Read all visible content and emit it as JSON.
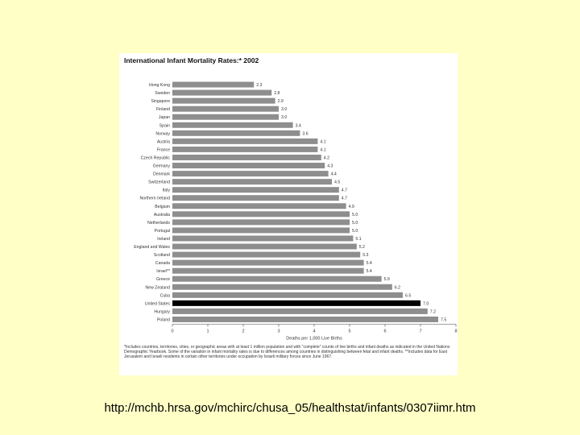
{
  "source_url": "http://mchb.hrsa.gov/mchirc/chusa_05/healthstat/infants/0307iimr.htm",
  "colors": {
    "bar": "#8e8e8e",
    "highlight": "#000000",
    "background": "#ffffc6"
  },
  "chart_data": {
    "type": "bar",
    "orientation": "horizontal",
    "title": "International Infant Mortality Rates:* 2002",
    "xlabel": "Deaths per 1,000 Live Births",
    "xlim": [
      0,
      8
    ],
    "xticks": [
      0,
      1,
      2,
      3,
      4,
      5,
      6,
      7,
      8
    ],
    "highlight": "United States",
    "categories": [
      "Hong Kong",
      "Sweden",
      "Singapore",
      "Finland",
      "Japan",
      "Spain",
      "Norway",
      "Austria",
      "France",
      "Czech Republic",
      "Germany",
      "Denmark",
      "Switzerland",
      "Italy",
      "Northern Ireland",
      "Belgium",
      "Australia",
      "Netherlands",
      "Portugal",
      "Ireland",
      "England and Wales",
      "Scotland",
      "Canada",
      "Israel**",
      "Greece",
      "New Zealand",
      "Cuba",
      "United States",
      "Hungary",
      "Poland"
    ],
    "values": [
      2.3,
      2.8,
      2.9,
      3.0,
      3.0,
      3.4,
      3.6,
      4.1,
      4.1,
      4.2,
      4.3,
      4.4,
      4.5,
      4.7,
      4.7,
      4.9,
      5.0,
      5.0,
      5.0,
      5.1,
      5.2,
      5.3,
      5.4,
      5.4,
      5.9,
      6.2,
      6.5,
      7.0,
      7.2,
      7.5
    ],
    "value_labels": [
      "2.3",
      "2.8",
      "2.9",
      "3.0",
      "3.0",
      "3.4",
      "3.6",
      "4.1",
      "4.1",
      "4.2",
      "4.3",
      "4.4",
      "4.5",
      "4.7",
      "4.7",
      "4.9",
      "5.0",
      "5.0",
      "5.0",
      "5.1",
      "5.2",
      "5.3",
      "5.4",
      "5.4",
      "5.9",
      "6.2",
      "6.5",
      "7.0",
      "7.2",
      "7.5"
    ],
    "footnote": "*Includes countries, territories, cities, or geographic areas with at least 1 million population and with \"complete\" counts of live births and infant deaths as indicated in the United Nations Demographic Yearbook. Some of the variation in infant mortality rates is due to differences among countries in distinguishing between fetal and infant deaths. **Includes data for East Jerusalem and Israeli residents in certain other territories under occupation by Israeli military forces since June 1967."
  }
}
